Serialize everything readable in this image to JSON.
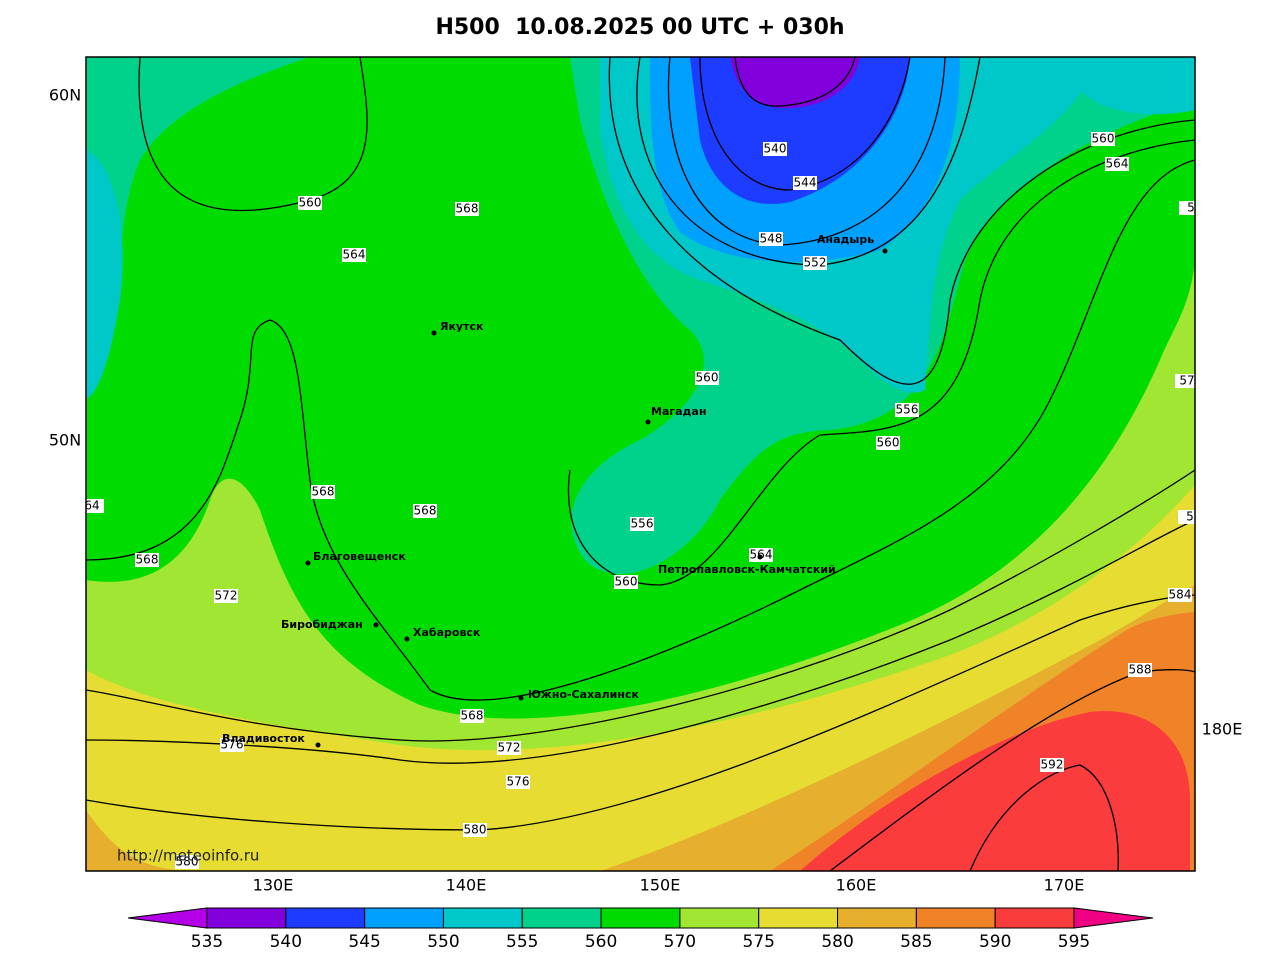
{
  "title": "H500  10.08.2025 00 UTC + 030h",
  "lat_labels": [
    "60N",
    "50N"
  ],
  "lon_labels": [
    "130E",
    "140E",
    "150E",
    "160E",
    "170E",
    "180E"
  ],
  "cities": [
    "Якутск",
    "Магадан",
    "Анадырь",
    "Благовещенск",
    "Биробиджан",
    "Хабаровск",
    "Южно-Сахалинск",
    "Петропавловск-Камчатский",
    "Владивосток"
  ],
  "contour_labels": [
    560,
    564,
    568,
    540,
    544,
    548,
    552,
    560,
    564,
    560,
    556,
    560,
    568,
    568,
    556,
    560,
    564,
    568,
    572,
    584,
    588,
    568,
    572,
    576,
    576,
    592,
    580,
    580
  ],
  "edge_labels": [
    "64",
    "5",
    "57",
    "5"
  ],
  "source": "http://meteoinfo.ru",
  "colorbar": {
    "ticks": [
      535,
      540,
      545,
      550,
      555,
      560,
      570,
      575,
      580,
      585,
      590,
      595
    ],
    "colors": [
      "#b400e6",
      "#8200dc",
      "#1e3cff",
      "#00a0ff",
      "#00c8c8",
      "#00d28c",
      "#00dc00",
      "#a0e632",
      "#e6dc32",
      "#e6af2d",
      "#f08228",
      "#fa3c3c",
      "#f00082"
    ]
  }
}
